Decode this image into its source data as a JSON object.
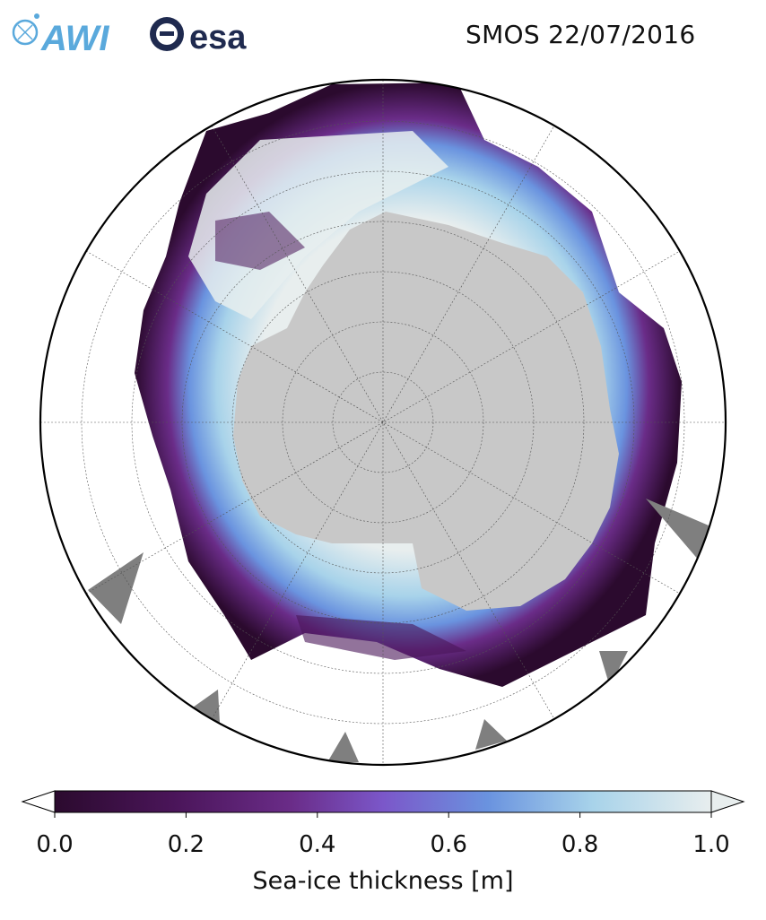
{
  "title": "SMOS 22/07/2016",
  "logos": {
    "awi_text": "AWI",
    "esa_text": "esa"
  },
  "map": {
    "projection": "South Polar Stereographic",
    "variable": "sea-ice thickness",
    "land_color": "#c8c8c8",
    "no_data_color": "#7f7f7f",
    "graticule": true
  },
  "colorbar": {
    "label": "Sea-ice thickness [m]",
    "ticks": [
      "0.0",
      "0.2",
      "0.4",
      "0.6",
      "0.8",
      "1.0"
    ],
    "range": [
      0.0,
      1.0
    ],
    "colors": [
      "#2b0a2e",
      "#4a1559",
      "#6a2c88",
      "#7b57c9",
      "#6a93df",
      "#a8d3ea",
      "#e8eeee"
    ]
  }
}
